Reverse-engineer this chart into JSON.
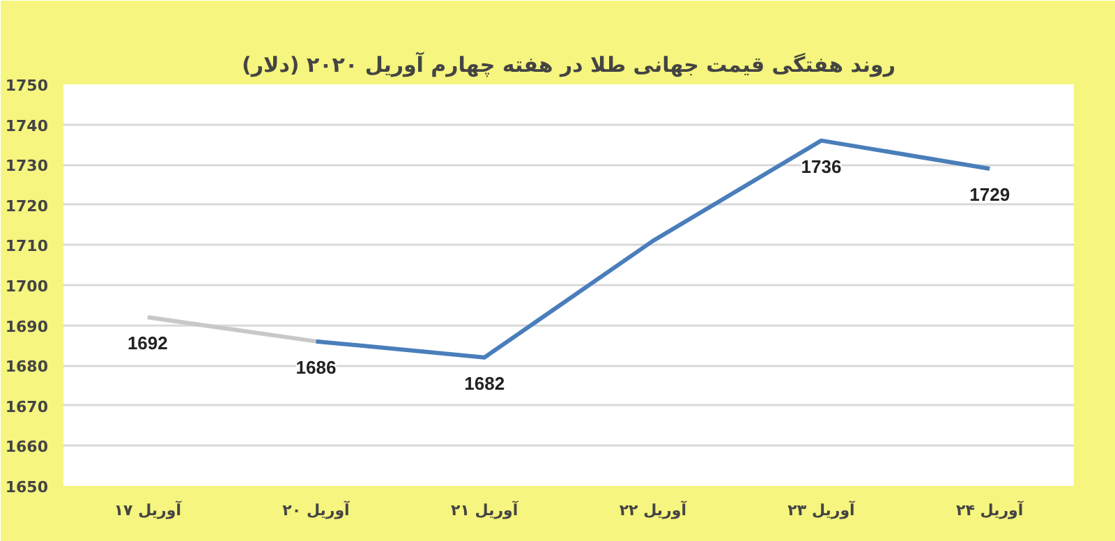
{
  "chart_data": {
    "type": "line",
    "title": "روند هفتگی قیمت جهانی طلا در هفته چهارم آوریل ۲۰۲۰ (دلار)",
    "categories": [
      "۱۷ آوریل",
      "۲۰ آوریل",
      "۲۱ آوریل",
      "۲۲ آوریل",
      "۲۳ آوریل",
      "۲۴ آوریل"
    ],
    "series": [
      {
        "color": "#c8c8c8",
        "values": [
          1692,
          1686,
          null,
          null,
          null,
          null
        ],
        "value_labels": [
          "1692",
          null,
          null,
          null,
          null,
          null
        ]
      },
      {
        "color": "#4a7ebb",
        "values": [
          null,
          1686,
          1682,
          1711,
          1736,
          1729
        ],
        "value_labels": [
          null,
          "1686",
          "1682",
          null,
          "1736",
          "1729"
        ]
      }
    ],
    "ylim": [
      1650,
      1750
    ],
    "yticks": [
      1650,
      1660,
      1670,
      1680,
      1690,
      1700,
      1710,
      1720,
      1730,
      1740,
      1750
    ],
    "grid": "y",
    "marker": "none",
    "line_style": "solid"
  }
}
